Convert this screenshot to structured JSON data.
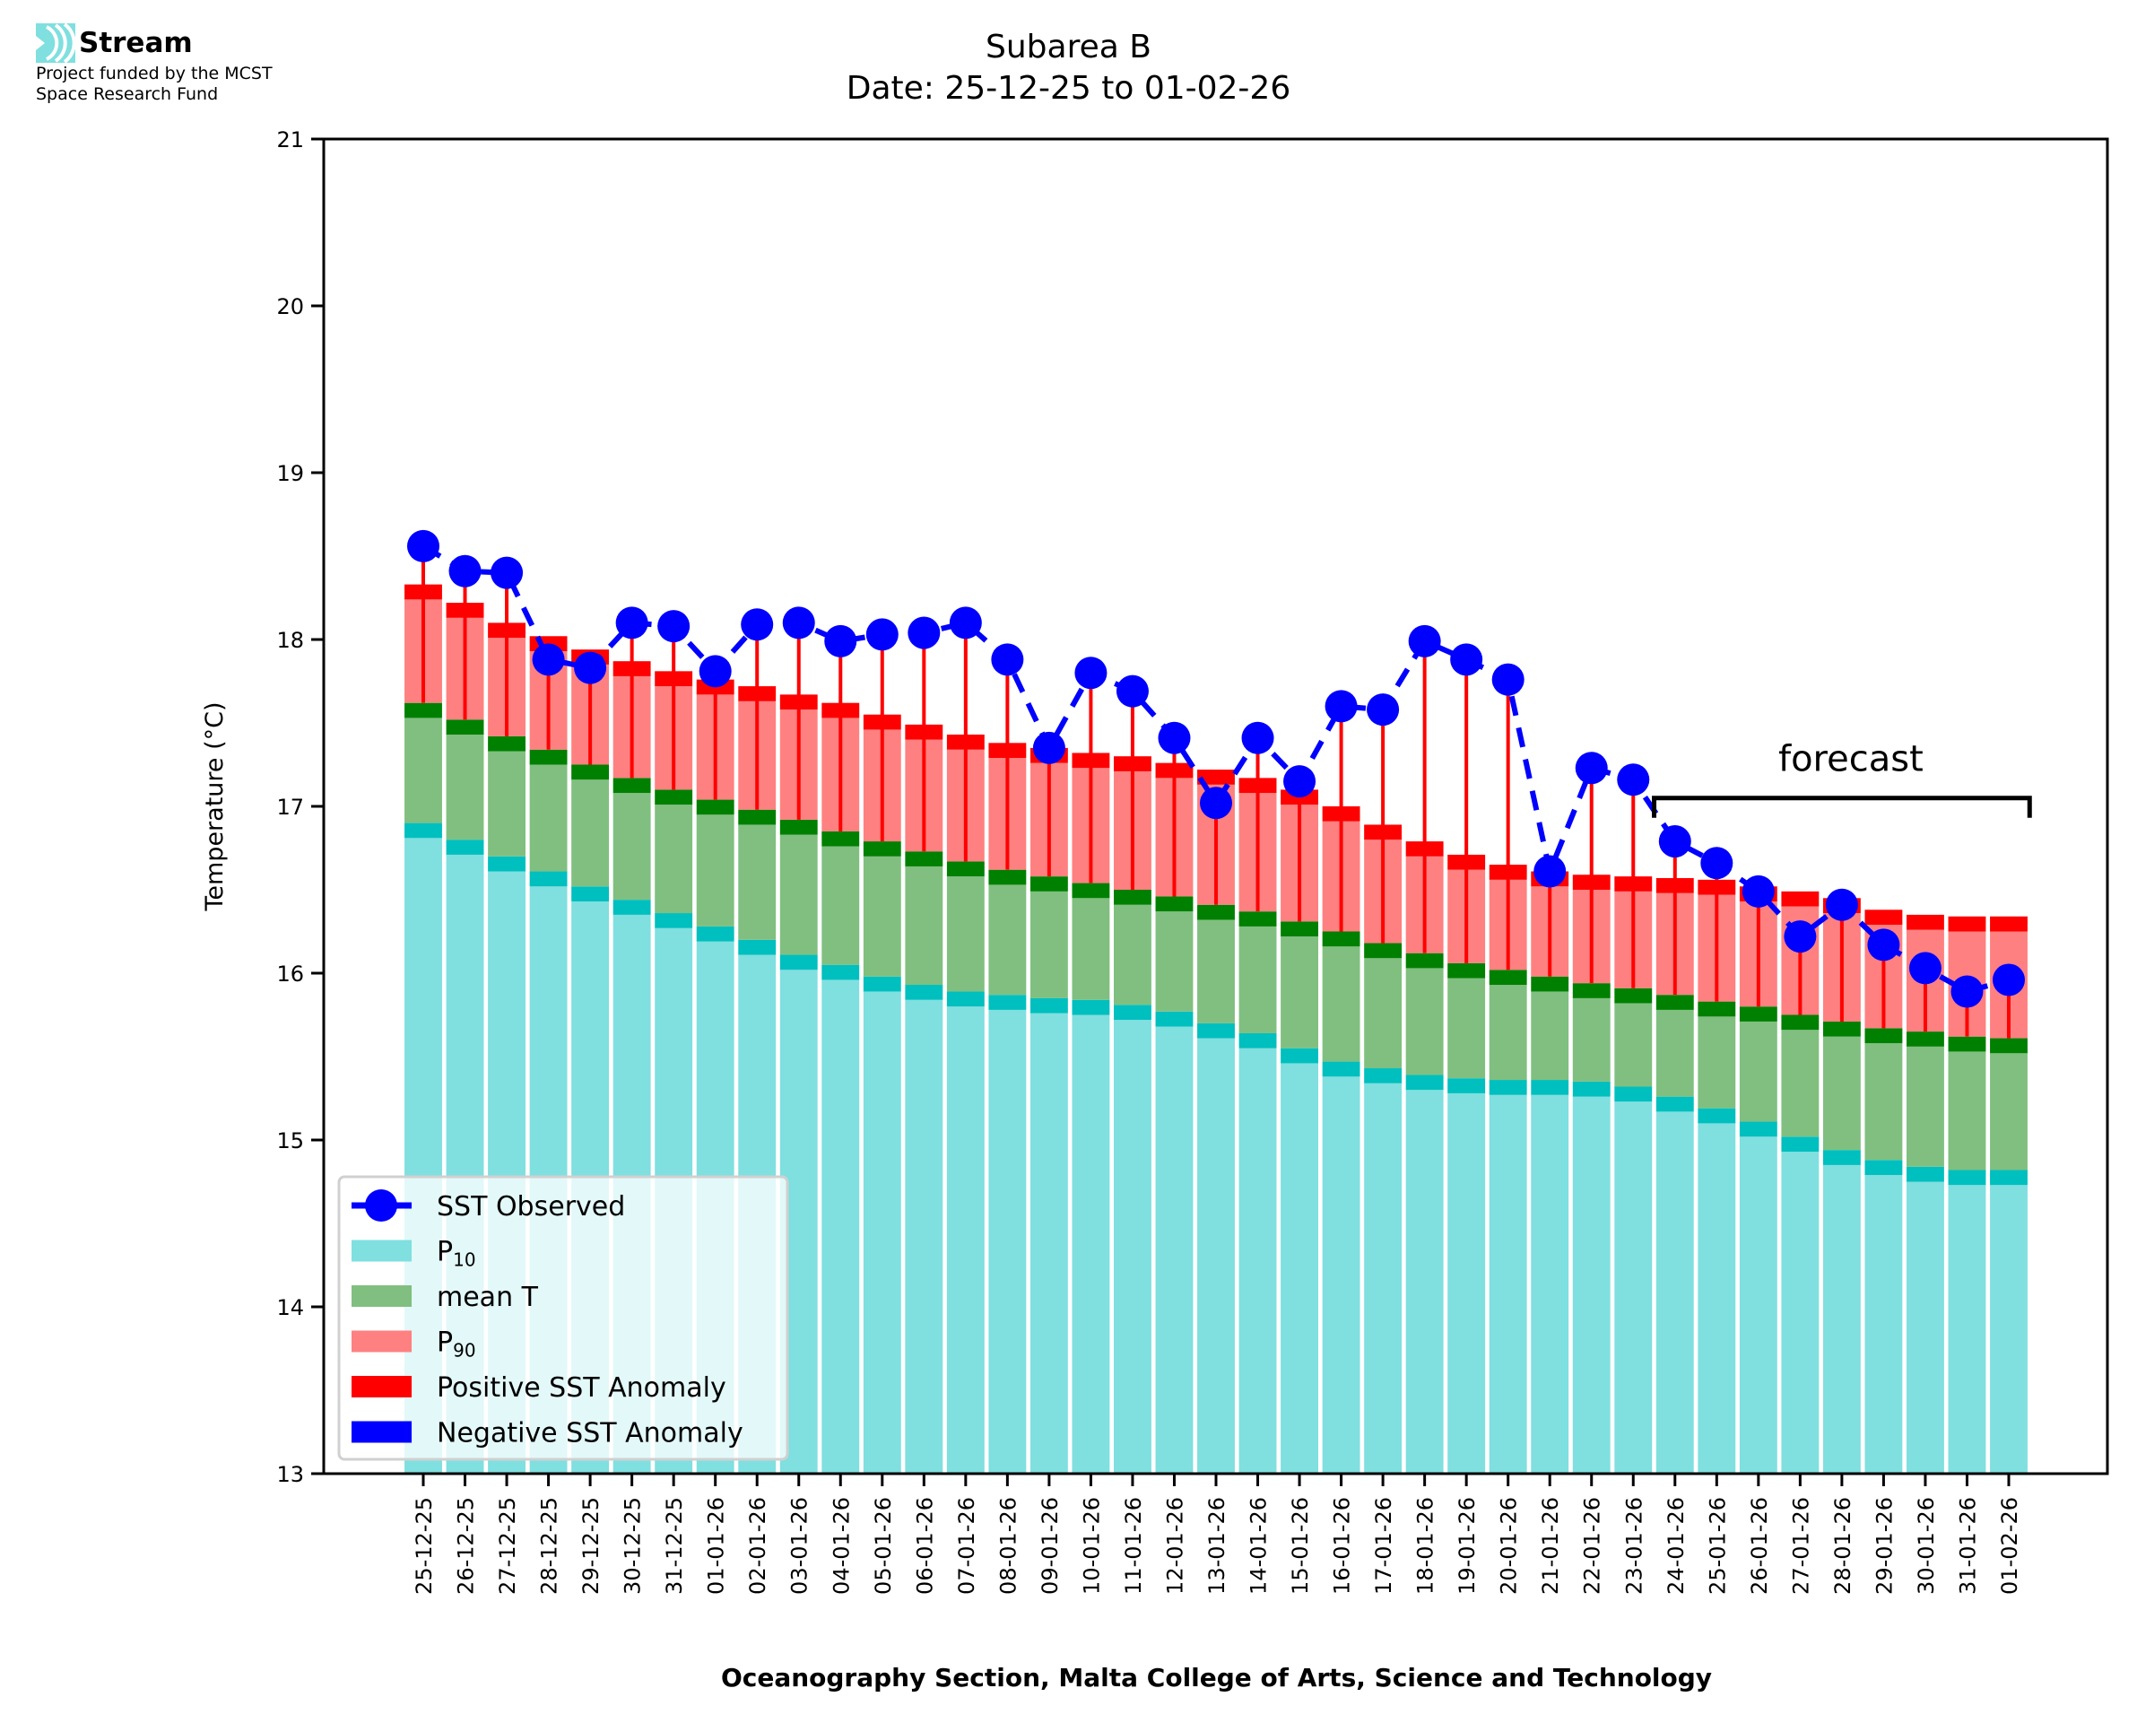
{
  "logo": {
    "name": "Stream",
    "funding_line1": "Project funded by the MCST",
    "funding_line2": "Space Research Fund"
  },
  "chart_data": {
    "type": "bar",
    "title": "Subarea B",
    "subtitle": "Date: 25-12-25 to 01-02-26",
    "xlabel": "Oceanography Section, Malta College of Arts, Science and Technology",
    "ylabel": "Temperature (°C)",
    "ylim": [
      13,
      21
    ],
    "yticks": [
      13,
      14,
      15,
      16,
      17,
      18,
      19,
      20,
      21
    ],
    "grid": false,
    "legend_position": "lower-left",
    "legend": [
      {
        "label": "SST Observed",
        "kind": "line-marker",
        "color": "#0000ff"
      },
      {
        "label": "P",
        "sub": "10",
        "kind": "patch",
        "color": "#80dfdf"
      },
      {
        "label": "mean T",
        "kind": "patch",
        "color": "#80bf80"
      },
      {
        "label": "P",
        "sub": "90",
        "kind": "patch",
        "color": "#ff8080"
      },
      {
        "label": "Positive SST Anomaly",
        "kind": "patch",
        "color": "#ff0000"
      },
      {
        "label": "Negative SST Anomaly",
        "kind": "patch",
        "color": "#0000ff"
      }
    ],
    "colors": {
      "p10": "#80dfdf",
      "p10_edge": "#00bfbf",
      "mean": "#80bf80",
      "mean_edge": "#008000",
      "p90": "#ff8080",
      "p90_edge": "#ff0000",
      "sst": "#0000ff",
      "pos_anomaly": "#ff0000",
      "neg_anomaly": "#0000ff"
    },
    "annotation": {
      "text": "forecast",
      "from": "24-01-26",
      "to": "01-02-26"
    },
    "categories": [
      "25-12-25",
      "26-12-25",
      "27-12-25",
      "28-12-25",
      "29-12-25",
      "30-12-25",
      "31-12-25",
      "01-01-26",
      "02-01-26",
      "03-01-26",
      "04-01-26",
      "05-01-26",
      "06-01-26",
      "07-01-26",
      "08-01-26",
      "09-01-26",
      "10-01-26",
      "11-01-26",
      "12-01-26",
      "13-01-26",
      "14-01-26",
      "15-01-26",
      "16-01-26",
      "17-01-26",
      "18-01-26",
      "19-01-26",
      "20-01-26",
      "21-01-26",
      "22-01-26",
      "23-01-26",
      "24-01-26",
      "25-01-26",
      "26-01-26",
      "27-01-26",
      "28-01-26",
      "29-01-26",
      "30-01-26",
      "31-01-26",
      "01-02-26"
    ],
    "series": [
      {
        "name": "P10",
        "values": [
          16.9,
          16.8,
          16.7,
          16.61,
          16.52,
          16.44,
          16.36,
          16.28,
          16.2,
          16.11,
          16.05,
          15.98,
          15.93,
          15.89,
          15.87,
          15.85,
          15.84,
          15.81,
          15.77,
          15.7,
          15.64,
          15.55,
          15.47,
          15.43,
          15.39,
          15.37,
          15.36,
          15.36,
          15.35,
          15.32,
          15.26,
          15.19,
          15.11,
          15.02,
          14.94,
          14.88,
          14.84,
          14.82,
          14.82
        ]
      },
      {
        "name": "mean T",
        "values": [
          17.62,
          17.52,
          17.42,
          17.34,
          17.25,
          17.17,
          17.1,
          17.04,
          16.98,
          16.92,
          16.85,
          16.79,
          16.73,
          16.67,
          16.62,
          16.58,
          16.54,
          16.5,
          16.46,
          16.41,
          16.37,
          16.31,
          16.25,
          16.18,
          16.12,
          16.06,
          16.02,
          15.98,
          15.94,
          15.91,
          15.87,
          15.83,
          15.8,
          15.75,
          15.71,
          15.67,
          15.65,
          15.62,
          15.61
        ]
      },
      {
        "name": "P90",
        "values": [
          18.33,
          18.22,
          18.1,
          18.02,
          17.94,
          17.87,
          17.81,
          17.76,
          17.72,
          17.67,
          17.62,
          17.55,
          17.49,
          17.43,
          17.38,
          17.35,
          17.32,
          17.3,
          17.26,
          17.22,
          17.17,
          17.1,
          17.0,
          16.89,
          16.79,
          16.71,
          16.65,
          16.61,
          16.59,
          16.58,
          16.57,
          16.56,
          16.52,
          16.49,
          16.45,
          16.38,
          16.35,
          16.34,
          16.34
        ]
      },
      {
        "name": "SST Observed",
        "values": [
          18.56,
          18.41,
          18.4,
          17.88,
          17.83,
          18.1,
          18.08,
          17.81,
          18.09,
          18.1,
          17.99,
          18.03,
          18.04,
          18.1,
          17.88,
          17.35,
          17.8,
          17.69,
          17.41,
          17.02,
          17.41,
          17.15,
          17.6,
          17.58,
          17.99,
          17.88,
          17.76,
          16.61,
          17.23,
          17.16,
          16.79,
          16.66,
          16.49,
          16.22,
          16.41,
          16.17,
          16.03,
          15.89,
          15.96
        ]
      }
    ]
  }
}
